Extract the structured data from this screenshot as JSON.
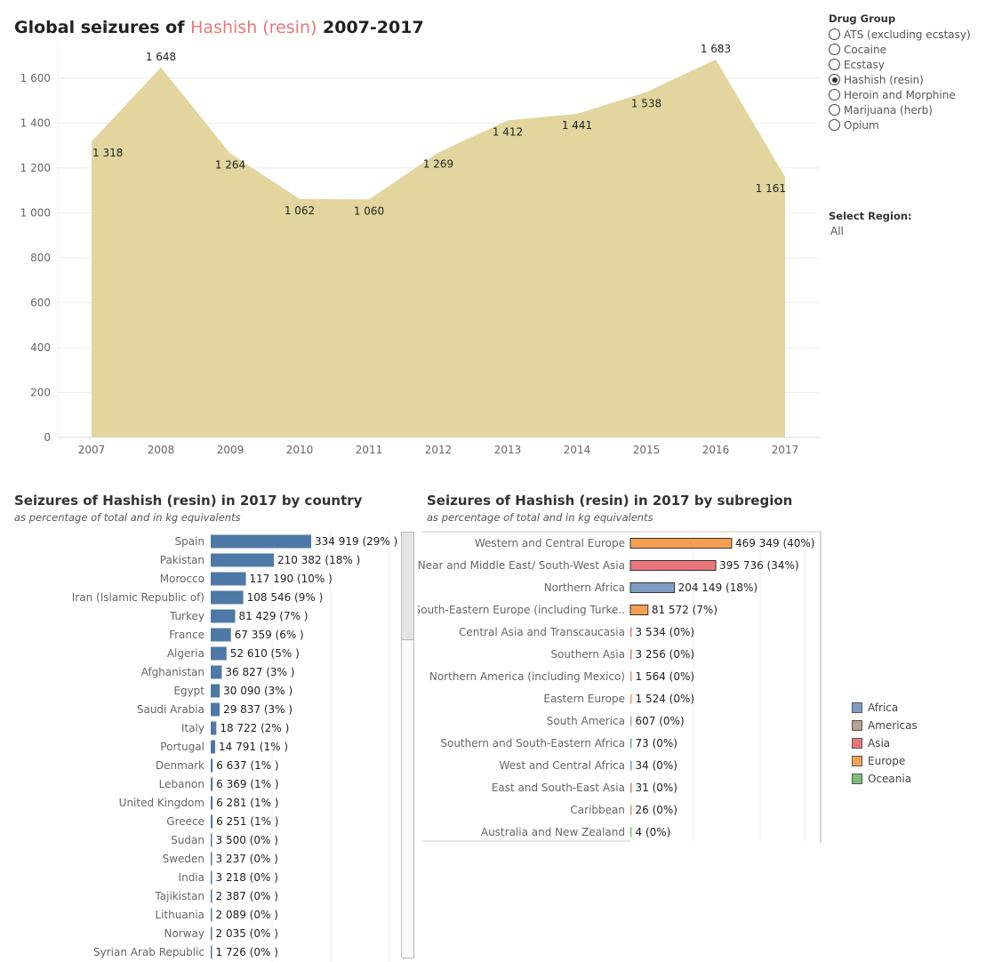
{
  "header": {
    "title_prefix": "Global seizures of",
    "drug": "Hashish (resin)",
    "title_suffix": "2007-2017"
  },
  "drug_group": {
    "label": "Drug Group",
    "options": [
      "ATS (excluding ecstasy)",
      "Cocaine",
      "Ecstasy",
      "Hashish (resin)",
      "Heroin and Morphine",
      "Marijuana (herb)",
      "Opium"
    ],
    "selected": "Hashish (resin)"
  },
  "region_filter": {
    "label": "Select Region:",
    "value": "All"
  },
  "country_panel": {
    "title": "Seizures of Hashish (resin)  in 2017 by country",
    "caption": "as percentage of total and in kg equivalents"
  },
  "subregion_panel": {
    "title": "Seizures of Hashish (resin) in 2017 by subregion",
    "caption": "as percentage of total and in kg equivalents"
  },
  "legend": {
    "items": [
      {
        "name": "Africa",
        "color": "#7f9dc1"
      },
      {
        "name": "Americas",
        "color": "#b9a291"
      },
      {
        "name": "Asia",
        "color": "#e8767a"
      },
      {
        "name": "Europe",
        "color": "#f4a052"
      },
      {
        "name": "Oceania",
        "color": "#80bd7c"
      }
    ]
  },
  "colors": {
    "area": "#e2d69e",
    "country_bar": "#4e79a7",
    "highlight": "#e8767a"
  },
  "chart_data": [
    {
      "type": "area",
      "x": [
        "2007",
        "2008",
        "2009",
        "2010",
        "2011",
        "2012",
        "2013",
        "2014",
        "2015",
        "2016",
        "2017"
      ],
      "values": [
        1318,
        1648,
        1264,
        1062,
        1060,
        1269,
        1412,
        1441,
        1538,
        1683,
        1161
      ],
      "labels": [
        "1 318",
        "1 648",
        "1 264",
        "1 062",
        "1 060",
        "1 269",
        "1 412",
        "1 441",
        "1 538",
        "1 683",
        "1 161"
      ],
      "yticks": [
        "0",
        "200",
        "400",
        "600",
        "800",
        "1 000",
        "1 200",
        "1 400",
        "1 600"
      ],
      "ytick_values": [
        0,
        200,
        400,
        600,
        800,
        1000,
        1200,
        1400,
        1600
      ],
      "ylim": [
        0,
        1750
      ],
      "grid": true
    },
    {
      "type": "bar",
      "orientation": "horizontal",
      "categories": [
        "Spain",
        "Pakistan",
        "Morocco",
        "Iran (Islamic Republic of)",
        "Turkey",
        "France",
        "Algeria",
        "Afghanistan",
        "Egypt",
        "Saudi Arabia",
        "Italy",
        "Portugal",
        "Denmark",
        "Lebanon",
        "United Kingdom",
        "Greece",
        "Sudan",
        "Sweden",
        "India",
        "Tajikistan",
        "Lithuania",
        "Norway",
        "Syrian Arab Republic"
      ],
      "values": [
        334919,
        210382,
        117190,
        108546,
        81429,
        67359,
        52610,
        36827,
        30090,
        29837,
        18722,
        14791,
        6637,
        6369,
        6281,
        6251,
        3500,
        3237,
        3218,
        2387,
        2089,
        2035,
        1726
      ],
      "labels": [
        "334 919 (29% )",
        "210 382 (18% )",
        "117 190 (10% )",
        "108 546 (9% )",
        "81 429 (7% )",
        "67 359 (6% )",
        "52 610 (5% )",
        "36 827 (3% )",
        "30 090 (3% )",
        "29 837 (3% )",
        "18 722 (2% )",
        "14 791 (1% )",
        "6 637 (1% )",
        "6 369 (1% )",
        "6 281 (1% )",
        "6 251 (1% )",
        "3 500 (0% )",
        "3 237 (0% )",
        "3 218 (0% )",
        "2 387 (0% )",
        "2 089 (0% )",
        "2 035 (0% )",
        "1 726 (0% )"
      ]
    },
    {
      "type": "bar",
      "orientation": "horizontal",
      "categories": [
        "Western and Central Europe",
        "Near and Middle East/ South-West Asia",
        "Northern Africa",
        "South-Eastern Europe (including Turke..",
        "Central Asia and Transcaucasia",
        "Southern Asia",
        "Northern America (including Mexico)",
        "Eastern Europe",
        "South America",
        "Southern and South-Eastern Africa",
        "West and Central Africa",
        "East and South-East Asia",
        "Caribbean",
        "Australia and New Zealand"
      ],
      "values": [
        469349,
        395736,
        204149,
        81572,
        3534,
        3256,
        1564,
        1524,
        607,
        73,
        34,
        31,
        26,
        4
      ],
      "labels": [
        "469 349 (40%)",
        "395 736 (34%)",
        "204 149 (18%)",
        "81 572 (7%)",
        "3 534 (0%)",
        "3 256 (0%)",
        "1 564 (0%)",
        "1 524 (0%)",
        "607 (0%)",
        "73 (0%)",
        "34 (0%)",
        "31 (0%)",
        "26 (0%)",
        "4 (0%)"
      ],
      "region": [
        "Europe",
        "Asia",
        "Africa",
        "Europe",
        "Asia",
        "Asia",
        "Americas",
        "Europe",
        "Americas",
        "Africa",
        "Africa",
        "Asia",
        "Americas",
        "Oceania"
      ]
    }
  ]
}
